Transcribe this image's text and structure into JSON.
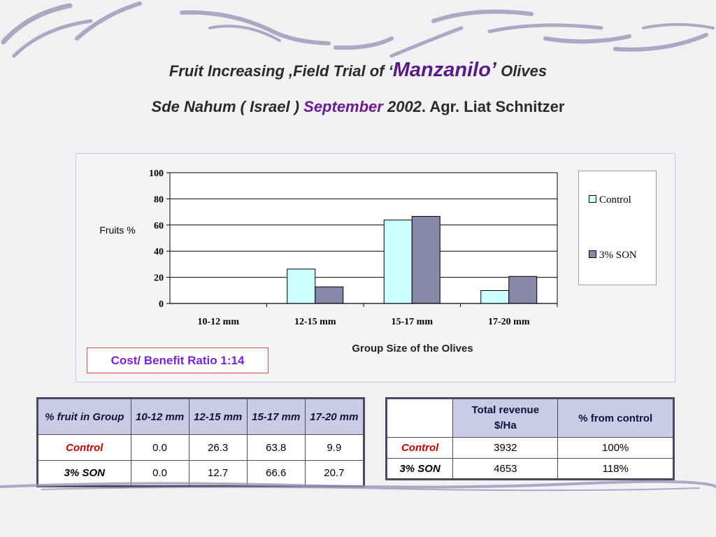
{
  "header": {
    "title_line1_prefix": "Fruit Increasing ,Field Trial of ‘",
    "title_line1_variety": "Manzanilo’",
    "title_line1_suffix": " Olives",
    "title_line2_location": "Sde Nahum ( Israel ) ",
    "title_line2_month": "September",
    "title_line2_year": " 2002",
    "title_line2_author": ". Agr. Liat Schnitzer"
  },
  "chart_data": {
    "type": "bar",
    "title": "",
    "xlabel": "Group Size of the Olives",
    "ylabel": "Fruits %",
    "ylim": [
      0,
      100
    ],
    "yticks": [
      0,
      20,
      40,
      60,
      80,
      100
    ],
    "grid": true,
    "legend_position": "right",
    "categories": [
      "10-12 mm",
      "12-15 mm",
      "15-17 mm",
      "17-20 mm"
    ],
    "series": [
      {
        "name": "Control",
        "values": [
          0,
          26.3,
          63.8,
          9.9
        ],
        "color": "#ccffff"
      },
      {
        "name": "3% SON",
        "values": [
          0,
          12.7,
          66.6,
          20.7
        ],
        "color": "#8888aa"
      }
    ]
  },
  "ratio": {
    "text": "Cost/ Benefit Ratio 1:14"
  },
  "fruit_table": {
    "headers": [
      "% fruit in Group",
      "10-12 mm",
      "12-15 mm",
      "15-17 mm",
      "17-20 mm"
    ],
    "rows": [
      {
        "label": "Control",
        "values": [
          "0.0",
          "26.3",
          "63.8",
          "9.9"
        ]
      },
      {
        "label": "3% SON",
        "values": [
          "0.0",
          "12.7",
          "66.6",
          "20.7"
        ]
      }
    ]
  },
  "revenue_table": {
    "headers": [
      "",
      "Total revenue\n$/Ha",
      "% from control"
    ],
    "rows": [
      {
        "label": "Control",
        "values": [
          "3932",
          "100%"
        ]
      },
      {
        "label": "3% SON",
        "values": [
          "4653",
          "118%"
        ]
      }
    ]
  }
}
